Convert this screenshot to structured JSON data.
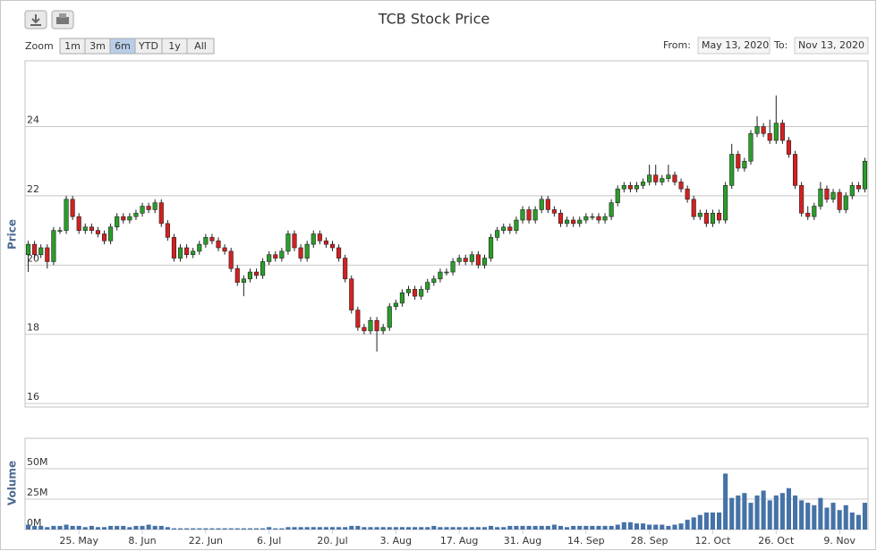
{
  "chart_data": {
    "type": "candlestick",
    "title": "TCB Stock Price",
    "range_selector": {
      "label": "Zoom",
      "buttons": [
        "1m",
        "3m",
        "6m",
        "YTD",
        "1y",
        "All"
      ],
      "selected": 2
    },
    "from_label": "From:",
    "from_date": "May 13, 2020",
    "to_label": "To:",
    "to_date": "Nov 13, 2020",
    "y_label": "Price",
    "y2_label": "Volume",
    "up_color": "#2a9d2a",
    "down_color": "#d42020",
    "volume_color": "#4572a7",
    "categories": [
      null,
      null,
      null,
      null,
      null,
      null,
      null,
      null,
      "25. May",
      null,
      null,
      null,
      null,
      null,
      null,
      null,
      null,
      null,
      "8. Jun",
      null,
      null,
      null,
      null,
      null,
      null,
      null,
      null,
      null,
      "22. Jun",
      null,
      null,
      null,
      null,
      null,
      null,
      null,
      null,
      null,
      "6. Jul",
      null,
      null,
      null,
      null,
      null,
      null,
      null,
      null,
      null,
      "20. Jul",
      null,
      null,
      null,
      null,
      null,
      null,
      null,
      null,
      null,
      "3. Aug",
      null,
      null,
      null,
      null,
      null,
      null,
      null,
      null,
      null,
      "17. Aug",
      null,
      null,
      null,
      null,
      null,
      null,
      null,
      null,
      null,
      "31. Aug",
      null,
      null,
      null,
      null,
      null,
      null,
      null,
      null,
      null,
      "14. Sep",
      null,
      null,
      null,
      null,
      null,
      null,
      null,
      null,
      null,
      "28. Sep",
      null,
      null,
      null,
      null,
      null,
      null,
      null,
      null,
      null,
      "12. Oct",
      null,
      null,
      null,
      null,
      null,
      null,
      null,
      null,
      null,
      "26. Oct",
      null,
      null,
      null,
      null,
      null,
      null,
      null,
      null,
      null,
      "9. Nov",
      null,
      null,
      null,
      null
    ],
    "open": [
      20.3,
      20.6,
      20.3,
      20.5,
      20.1,
      21.0,
      21.0,
      21.9,
      21.4,
      21.0,
      21.1,
      21.0,
      20.9,
      20.7,
      21.1,
      21.4,
      21.3,
      21.4,
      21.5,
      21.7,
      21.6,
      21.8,
      21.2,
      20.8,
      20.2,
      20.5,
      20.3,
      20.4,
      20.6,
      20.8,
      20.7,
      20.5,
      20.4,
      19.9,
      19.5,
      19.6,
      19.8,
      19.7,
      20.1,
      20.3,
      20.2,
      20.4,
      20.9,
      20.5,
      20.2,
      20.6,
      20.9,
      20.7,
      20.6,
      20.5,
      20.2,
      19.6,
      18.7,
      18.2,
      18.1,
      18.4,
      18.1,
      18.2,
      18.8,
      18.9,
      19.2,
      19.3,
      19.1,
      19.3,
      19.5,
      19.6,
      19.8,
      19.8,
      20.1,
      20.2,
      20.1,
      20.3,
      20.0,
      20.2,
      20.8,
      21.0,
      21.1,
      21.0,
      21.3,
      21.6,
      21.3,
      21.6,
      21.9,
      21.6,
      21.5,
      21.2,
      21.3,
      21.2,
      21.3,
      21.4,
      21.4,
      21.3,
      21.4,
      21.8,
      22.2,
      22.3,
      22.2,
      22.3,
      22.4,
      22.6,
      22.4,
      22.5,
      22.6,
      22.4,
      22.2,
      21.9,
      21.4,
      21.5,
      21.2,
      21.5,
      21.3,
      22.3,
      23.2,
      22.8,
      23.0,
      23.8,
      24.0,
      23.8,
      23.6,
      24.1,
      23.6,
      23.2,
      22.3,
      21.5,
      21.4,
      21.7,
      22.2,
      21.9,
      22.1,
      21.6,
      22.0,
      22.3,
      22.2
    ],
    "high": [
      20.7,
      20.7,
      20.6,
      20.6,
      21.1,
      21.1,
      22.0,
      22.0,
      21.5,
      21.2,
      21.2,
      21.1,
      21.0,
      21.2,
      21.5,
      21.5,
      21.5,
      21.6,
      21.8,
      21.8,
      21.9,
      21.9,
      21.3,
      20.9,
      20.6,
      20.6,
      20.5,
      20.7,
      20.9,
      20.9,
      20.8,
      20.6,
      20.5,
      20.0,
      19.7,
      19.9,
      19.9,
      20.2,
      20.4,
      20.4,
      20.5,
      21.0,
      21.0,
      20.6,
      20.7,
      21.0,
      21.0,
      20.8,
      20.7,
      20.6,
      20.3,
      19.7,
      18.8,
      18.3,
      18.5,
      18.5,
      18.3,
      18.9,
      19.0,
      19.3,
      19.4,
      19.4,
      19.4,
      19.6,
      19.7,
      19.9,
      19.9,
      20.2,
      20.3,
      20.3,
      20.4,
      20.4,
      20.3,
      20.9,
      21.1,
      21.2,
      21.2,
      21.4,
      21.7,
      21.7,
      21.7,
      22.0,
      22.0,
      21.7,
      21.6,
      21.4,
      21.4,
      21.4,
      21.5,
      21.5,
      21.5,
      21.5,
      21.9,
      22.3,
      22.4,
      22.4,
      22.4,
      22.5,
      22.9,
      22.9,
      22.6,
      22.9,
      22.7,
      22.5,
      22.3,
      22.0,
      21.6,
      21.6,
      21.6,
      21.6,
      22.4,
      23.5,
      23.3,
      23.1,
      23.9,
      24.3,
      24.1,
      24.2,
      24.9,
      24.2,
      23.7,
      23.3,
      22.4,
      21.7,
      21.8,
      22.4,
      22.3,
      22.2,
      22.2,
      22.1,
      22.4,
      22.4,
      23.1
    ],
    "low": [
      19.8,
      20.2,
      20.2,
      19.9,
      20.0,
      20.9,
      20.9,
      21.3,
      20.9,
      20.9,
      20.9,
      20.8,
      20.6,
      20.6,
      21.0,
      21.2,
      21.2,
      21.3,
      21.4,
      21.5,
      21.5,
      21.1,
      20.7,
      20.1,
      20.1,
      20.2,
      20.2,
      20.3,
      20.5,
      20.6,
      20.4,
      20.3,
      19.8,
      19.4,
      19.1,
      19.5,
      19.6,
      19.6,
      20.0,
      20.1,
      20.1,
      20.3,
      20.4,
      20.1,
      20.1,
      20.5,
      20.6,
      20.5,
      20.4,
      20.1,
      19.5,
      18.6,
      18.1,
      18.0,
      18.0,
      17.5,
      18.0,
      18.1,
      18.7,
      18.8,
      19.1,
      19.0,
      19.0,
      19.2,
      19.4,
      19.5,
      19.7,
      19.7,
      20.0,
      20.0,
      20.0,
      19.9,
      19.9,
      20.1,
      20.7,
      20.9,
      20.9,
      20.9,
      21.2,
      21.2,
      21.2,
      21.5,
      21.5,
      21.4,
      21.1,
      21.1,
      21.1,
      21.1,
      21.2,
      21.3,
      21.2,
      21.2,
      21.3,
      21.7,
      22.1,
      22.1,
      22.1,
      22.2,
      22.3,
      22.3,
      22.3,
      22.4,
      22.3,
      22.1,
      21.8,
      21.3,
      21.3,
      21.1,
      21.1,
      21.2,
      21.2,
      22.2,
      22.7,
      22.7,
      22.9,
      23.7,
      23.7,
      23.5,
      23.5,
      23.5,
      23.1,
      22.2,
      21.4,
      21.3,
      21.3,
      21.6,
      21.8,
      21.8,
      21.5,
      21.5,
      21.9,
      22.1,
      22.1
    ],
    "close": [
      20.6,
      20.3,
      20.5,
      20.1,
      21.0,
      21.0,
      21.9,
      21.4,
      21.0,
      21.1,
      21.0,
      20.9,
      20.7,
      21.1,
      21.4,
      21.3,
      21.4,
      21.5,
      21.7,
      21.6,
      21.8,
      21.2,
      20.8,
      20.2,
      20.5,
      20.3,
      20.4,
      20.6,
      20.8,
      20.7,
      20.5,
      20.4,
      19.9,
      19.5,
      19.6,
      19.8,
      19.7,
      20.1,
      20.3,
      20.2,
      20.4,
      20.9,
      20.5,
      20.2,
      20.6,
      20.9,
      20.7,
      20.6,
      20.5,
      20.2,
      19.6,
      18.7,
      18.2,
      18.1,
      18.4,
      18.1,
      18.2,
      18.8,
      18.9,
      19.2,
      19.3,
      19.1,
      19.3,
      19.5,
      19.6,
      19.8,
      19.8,
      20.1,
      20.2,
      20.1,
      20.3,
      20.0,
      20.2,
      20.8,
      21.0,
      21.1,
      21.0,
      21.3,
      21.6,
      21.3,
      21.6,
      21.9,
      21.6,
      21.5,
      21.2,
      21.3,
      21.2,
      21.3,
      21.4,
      21.4,
      21.3,
      21.4,
      21.8,
      22.2,
      22.3,
      22.2,
      22.3,
      22.4,
      22.6,
      22.4,
      22.5,
      22.6,
      22.4,
      22.2,
      21.9,
      21.4,
      21.5,
      21.2,
      21.5,
      21.3,
      22.3,
      23.2,
      22.8,
      23.0,
      23.8,
      24.0,
      23.8,
      23.6,
      24.1,
      23.6,
      23.2,
      22.3,
      21.5,
      21.4,
      21.7,
      22.2,
      21.9,
      22.1,
      21.6,
      22.0,
      22.3,
      22.2,
      23.0
    ],
    "volume": [
      4000000,
      3000000,
      3000000,
      2000000,
      3000000,
      3000000,
      4000000,
      3000000,
      3000000,
      2000000,
      3000000,
      2000000,
      2000000,
      3000000,
      3000000,
      3000000,
      2000000,
      3000000,
      3000000,
      4000000,
      3000000,
      3000000,
      2000000,
      1000000,
      1000000,
      1000000,
      1000000,
      1000000,
      1000000,
      1000000,
      1000000,
      1000000,
      1000000,
      1000000,
      1000000,
      1000000,
      1000000,
      1000000,
      2000000,
      1000000,
      1000000,
      2000000,
      2000000,
      2000000,
      2000000,
      2000000,
      2000000,
      2000000,
      2000000,
      2000000,
      2000000,
      3000000,
      3000000,
      2000000,
      2000000,
      2000000,
      2000000,
      2000000,
      2000000,
      2000000,
      2000000,
      2000000,
      2000000,
      2000000,
      3000000,
      2000000,
      2000000,
      2000000,
      2000000,
      2000000,
      2000000,
      2000000,
      2000000,
      3000000,
      2000000,
      2000000,
      3000000,
      3000000,
      3000000,
      3000000,
      3000000,
      3000000,
      3000000,
      4000000,
      3000000,
      2000000,
      3000000,
      3000000,
      3000000,
      3000000,
      3000000,
      3000000,
      3000000,
      4000000,
      6000000,
      6000000,
      5000000,
      5000000,
      4000000,
      4000000,
      4000000,
      3000000,
      4000000,
      5000000,
      8000000,
      10000000,
      12000000,
      14000000,
      14000000,
      14000000,
      46000000,
      26000000,
      28000000,
      30000000,
      22000000,
      28000000,
      32000000,
      24000000,
      28000000,
      30000000,
      34000000,
      28000000,
      24000000,
      22000000,
      20000000,
      26000000,
      18000000,
      22000000,
      16000000,
      20000000,
      14000000,
      12000000,
      22000000
    ],
    "ylim": [
      15.9,
      25.9
    ],
    "yticks": [
      16,
      18,
      20,
      22,
      24
    ],
    "y2lim": [
      0,
      75000000
    ],
    "y2ticks": [
      {
        "value": 0,
        "label": "0M"
      },
      {
        "value": 25000000,
        "label": "25M"
      },
      {
        "value": 50000000,
        "label": "50M"
      }
    ],
    "grid": true
  }
}
